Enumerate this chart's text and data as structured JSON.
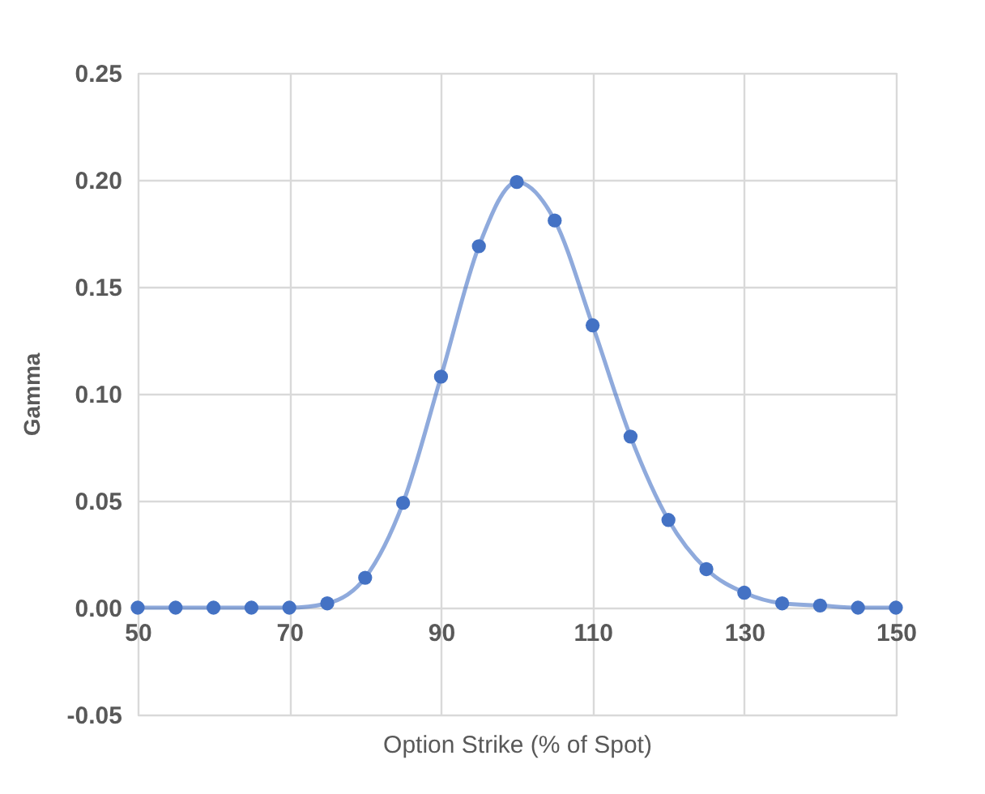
{
  "chart_data": {
    "type": "line",
    "xlabel": "Option Strike (% of Spot)",
    "ylabel": "Gamma",
    "x": [
      50,
      55,
      60,
      65,
      70,
      75,
      80,
      85,
      90,
      95,
      100,
      105,
      110,
      115,
      120,
      125,
      130,
      135,
      140,
      145,
      150
    ],
    "series": [
      {
        "color": "#4472c4",
        "values": [
          0,
          0,
          0,
          0,
          0,
          0.002,
          0.014,
          0.049,
          0.108,
          0.169,
          0.199,
          0.181,
          0.132,
          0.08,
          0.041,
          0.018,
          0.007,
          0.002,
          0.001,
          0,
          0
        ]
      }
    ],
    "xlim": [
      50,
      150
    ],
    "xticks": [
      50,
      70,
      90,
      110,
      130,
      150
    ],
    "ylim": [
      -0.05,
      0.25
    ],
    "yticks": [
      {
        "value": -0.05,
        "label": "-0.05"
      },
      {
        "value": 0,
        "label": "0.00"
      },
      {
        "value": 0.05,
        "label": "0.05"
      },
      {
        "value": 0.1,
        "label": "0.10"
      },
      {
        "value": 0.15,
        "label": "0.15"
      },
      {
        "value": 0.2,
        "label": "0.20"
      },
      {
        "value": 0.25,
        "label": "0.25"
      }
    ],
    "grid": true,
    "marker": "circle",
    "line_style": "solid"
  }
}
